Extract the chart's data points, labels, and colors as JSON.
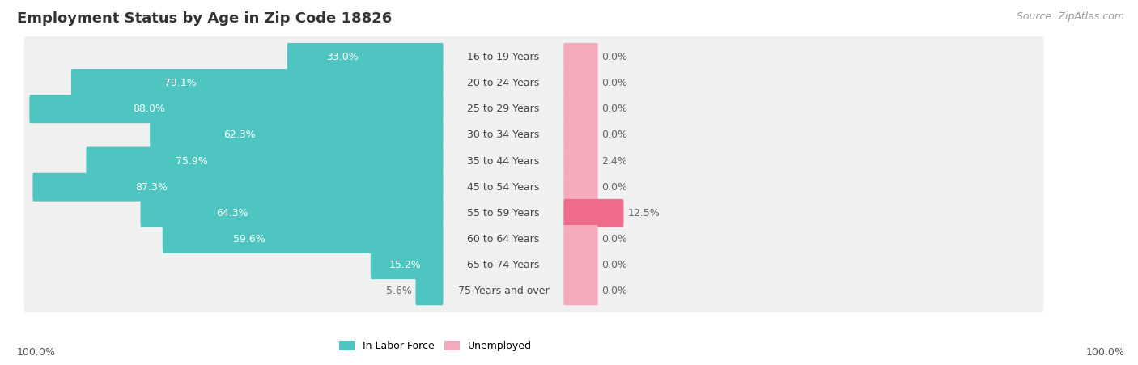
{
  "title": "Employment Status by Age in Zip Code 18826",
  "source": "Source: ZipAtlas.com",
  "categories": [
    "16 to 19 Years",
    "20 to 24 Years",
    "25 to 29 Years",
    "30 to 34 Years",
    "35 to 44 Years",
    "45 to 54 Years",
    "55 to 59 Years",
    "60 to 64 Years",
    "65 to 74 Years",
    "75 Years and over"
  ],
  "labor_force": [
    33.0,
    79.1,
    88.0,
    62.3,
    75.9,
    87.3,
    64.3,
    59.6,
    15.2,
    5.6
  ],
  "unemployed": [
    0.0,
    0.0,
    0.0,
    0.0,
    2.4,
    0.0,
    12.5,
    0.0,
    0.0,
    0.0
  ],
  "labor_force_color": "#4EC5C1",
  "unemployed_color_low": "#F5AABE",
  "unemployed_color_high": "#EE6B8C",
  "unemployed_threshold": 10.0,
  "row_bg_color": "#F0F0F0",
  "row_bg_alt_color": "#E8E8E8",
  "label_color_inside": "#FFFFFF",
  "label_color_outside": "#666666",
  "axis_label_left": "100.0%",
  "axis_label_right": "100.0%",
  "legend_labor_force": "In Labor Force",
  "legend_unemployed": "Unemployed",
  "title_fontsize": 13,
  "source_fontsize": 9,
  "bar_label_fontsize": 9,
  "category_fontsize": 9,
  "axis_label_fontsize": 9,
  "legend_fontsize": 9,
  "max_value": 100.0,
  "label_inside_threshold": 12.0,
  "un_min_bar_width": 7.0
}
